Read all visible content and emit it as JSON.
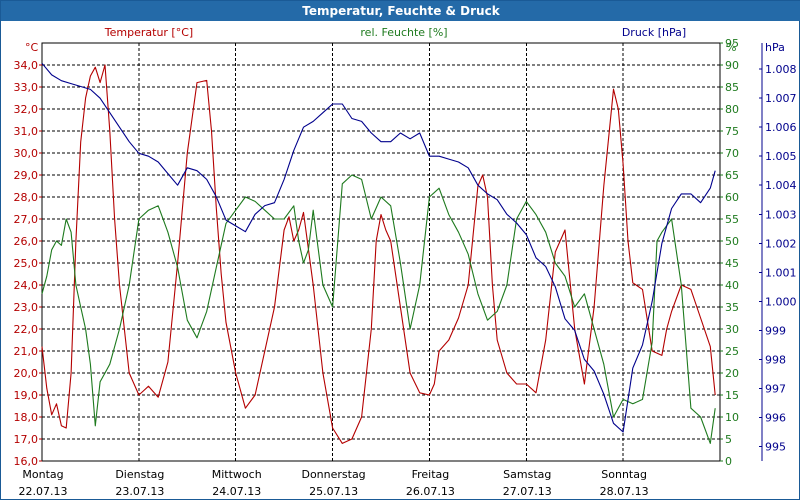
{
  "window": {
    "title": "Temperatur, Feuchte & Druck"
  },
  "colors": {
    "temperature": "#b40000",
    "humidity": "#1e7a1e",
    "pressure": "#00008c",
    "grid": "#000000"
  },
  "chart_data": {
    "type": "line",
    "title": "Temperatur, Feuchte & Druck",
    "x_range": [
      0,
      7
    ],
    "x_ticks": [
      {
        "day": "Montag",
        "date": "22.07.13",
        "x": 0
      },
      {
        "day": "Dienstag",
        "date": "23.07.13",
        "x": 1
      },
      {
        "day": "Mittwoch",
        "date": "24.07.13",
        "x": 2
      },
      {
        "day": "Donnerstag",
        "date": "25.07.13",
        "x": 3
      },
      {
        "day": "Freitag",
        "date": "26.07.13",
        "x": 4
      },
      {
        "day": "Samstag",
        "date": "27.07.13",
        "x": 5
      },
      {
        "day": "Sonntag",
        "date": "28.07.13",
        "x": 6
      }
    ],
    "axes": {
      "temperature": {
        "unit": "°C",
        "legend": "Temperatur [°C]",
        "min": 16,
        "max": 35,
        "labels": [
          "16,0",
          "17,0",
          "18,0",
          "19,0",
          "20,0",
          "21,0",
          "22,0",
          "23,0",
          "24,0",
          "25,0",
          "26,0",
          "27,0",
          "28,0",
          "29,0",
          "30,0",
          "31,0",
          "32,0",
          "33,0",
          "34,0"
        ]
      },
      "humidity": {
        "unit": "%",
        "legend": "rel. Feuchte [%]",
        "min": 0,
        "max": 95,
        "labels": [
          "0",
          "5",
          "10",
          "15",
          "20",
          "25",
          "30",
          "35",
          "40",
          "45",
          "50",
          "55",
          "60",
          "65",
          "70",
          "75",
          "80",
          "85",
          "90",
          "95"
        ]
      },
      "pressure": {
        "unit": "hPa",
        "legend": "Druck [hPa]",
        "min": 995,
        "max": 1008,
        "labels": [
          "995",
          "996",
          "997",
          "998",
          "999",
          "1.000",
          "1.001",
          "1.002",
          "1.003",
          "1.004",
          "1.005",
          "1.006",
          "1.007",
          "1.008"
        ]
      }
    },
    "series": [
      {
        "name": "Temperatur",
        "axis": "temperature",
        "x": [
          0,
          0.05,
          0.1,
          0.15,
          0.2,
          0.25,
          0.3,
          0.35,
          0.4,
          0.45,
          0.5,
          0.55,
          0.6,
          0.65,
          0.7,
          0.75,
          0.8,
          0.9,
          1,
          1.05,
          1.1,
          1.2,
          1.3,
          1.4,
          1.5,
          1.6,
          1.7,
          1.75,
          1.8,
          1.85,
          1.9,
          2,
          2.1,
          2.2,
          2.3,
          2.4,
          2.5,
          2.55,
          2.6,
          2.65,
          2.7,
          2.8,
          2.9,
          3,
          3.1,
          3.2,
          3.3,
          3.4,
          3.45,
          3.5,
          3.55,
          3.6,
          3.7,
          3.8,
          3.9,
          4,
          4.05,
          4.1,
          4.2,
          4.3,
          4.4,
          4.5,
          4.55,
          4.6,
          4.65,
          4.7,
          4.8,
          4.9,
          5,
          5.1,
          5.2,
          5.3,
          5.4,
          5.5,
          5.6,
          5.7,
          5.8,
          5.9,
          5.95,
          6,
          6.05,
          6.1,
          6.2,
          6.3,
          6.4,
          6.45,
          6.5,
          6.6,
          6.7,
          6.8,
          6.9,
          6.95
        ],
        "values": [
          21.2,
          19.3,
          18.1,
          18.6,
          17.6,
          17.5,
          20,
          26,
          30.5,
          32.5,
          33.5,
          33.9,
          33.2,
          34,
          31,
          27,
          24,
          20,
          19,
          19.2,
          19.4,
          18.9,
          20.5,
          25,
          30,
          33.2,
          33.3,
          31,
          27.5,
          24.5,
          22.3,
          20,
          18.4,
          19,
          21,
          23,
          26.5,
          27.1,
          26,
          26.5,
          27.3,
          24,
          20,
          17.5,
          16.8,
          17,
          18,
          22,
          26,
          27.2,
          26.5,
          26,
          23,
          20,
          19.1,
          19,
          19.5,
          21,
          21.5,
          22.5,
          24,
          28.5,
          29,
          28,
          24,
          21.5,
          20,
          19.5,
          19.5,
          19.1,
          21.5,
          25.5,
          26.5,
          22,
          19.5,
          23,
          28.5,
          32.9,
          32,
          29.5,
          26,
          24.1,
          23.8,
          21,
          20.8,
          22,
          22.8,
          24,
          23.8,
          22.5,
          21.2,
          19
        ]
      },
      {
        "name": "rel. Feuchte",
        "axis": "humidity",
        "x": [
          0,
          0.05,
          0.1,
          0.15,
          0.2,
          0.25,
          0.3,
          0.35,
          0.4,
          0.45,
          0.5,
          0.55,
          0.6,
          0.65,
          0.7,
          0.8,
          0.9,
          1,
          1.1,
          1.2,
          1.3,
          1.4,
          1.5,
          1.6,
          1.7,
          1.8,
          1.9,
          2,
          2.1,
          2.2,
          2.3,
          2.4,
          2.5,
          2.6,
          2.65,
          2.7,
          2.75,
          2.8,
          2.9,
          3,
          3.1,
          3.2,
          3.3,
          3.4,
          3.5,
          3.6,
          3.7,
          3.8,
          3.9,
          4,
          4.1,
          4.2,
          4.3,
          4.4,
          4.5,
          4.6,
          4.7,
          4.8,
          4.9,
          5,
          5.1,
          5.2,
          5.3,
          5.4,
          5.5,
          5.6,
          5.7,
          5.8,
          5.9,
          6,
          6.1,
          6.2,
          6.3,
          6.35,
          6.4,
          6.5,
          6.6,
          6.7,
          6.8,
          6.9,
          6.95
        ],
        "values": [
          38,
          42,
          48,
          50,
          49,
          55,
          52,
          40,
          35,
          30,
          22,
          8,
          18,
          20,
          22,
          30,
          40,
          55,
          57,
          58,
          52,
          44,
          32,
          28,
          34,
          44,
          54,
          57,
          60,
          59,
          57,
          55,
          55,
          58,
          50,
          45,
          48,
          57,
          40,
          35,
          63,
          65,
          64,
          55,
          60,
          58,
          45,
          30,
          40,
          60,
          62,
          56,
          52,
          47,
          38,
          32,
          34,
          40,
          55,
          59,
          56,
          52,
          45,
          42,
          35,
          38,
          30,
          22,
          10,
          14,
          13,
          14,
          27,
          50,
          52,
          55,
          40,
          12,
          10,
          4,
          12
        ]
      },
      {
        "name": "Druck",
        "axis": "pressure",
        "x": [
          0,
          0.1,
          0.2,
          0.3,
          0.4,
          0.5,
          0.6,
          0.7,
          0.8,
          0.9,
          1,
          1.1,
          1.2,
          1.3,
          1.4,
          1.5,
          1.6,
          1.7,
          1.8,
          1.9,
          2,
          2.1,
          2.2,
          2.3,
          2.4,
          2.5,
          2.6,
          2.7,
          2.8,
          2.9,
          3,
          3.1,
          3.2,
          3.3,
          3.4,
          3.5,
          3.6,
          3.7,
          3.8,
          3.9,
          4,
          4.1,
          4.2,
          4.3,
          4.4,
          4.5,
          4.6,
          4.7,
          4.8,
          4.9,
          5,
          5.1,
          5.2,
          5.3,
          5.4,
          5.5,
          5.6,
          5.7,
          5.8,
          5.9,
          6,
          6.1,
          6.2,
          6.3,
          6.4,
          6.5,
          6.6,
          6.7,
          6.8,
          6.9,
          6.95
        ],
        "values": [
          1008.2,
          1007.8,
          1007.6,
          1007.5,
          1007.4,
          1007.3,
          1007,
          1006.5,
          1006,
          1005.5,
          1005.1,
          1005,
          1004.8,
          1004.4,
          1004,
          1004.6,
          1004.5,
          1004.2,
          1003.6,
          1002.8,
          1002.6,
          1002.4,
          1003,
          1003.3,
          1003.4,
          1004.2,
          1005.2,
          1006,
          1006.2,
          1006.5,
          1006.8,
          1006.8,
          1006.3,
          1006.2,
          1005.8,
          1005.5,
          1005.5,
          1005.8,
          1005.6,
          1005.8,
          1005,
          1005,
          1004.9,
          1004.8,
          1004.6,
          1004,
          1003.7,
          1003.5,
          1003,
          1002.7,
          1002.3,
          1001.5,
          1001.2,
          1000.5,
          999.4,
          999,
          998,
          997.6,
          996.8,
          995.8,
          995.5,
          997.7,
          998.5,
          1000,
          1002,
          1003.2,
          1003.7,
          1003.7,
          1003.4,
          1003.9,
          1004.5
        ]
      }
    ]
  }
}
